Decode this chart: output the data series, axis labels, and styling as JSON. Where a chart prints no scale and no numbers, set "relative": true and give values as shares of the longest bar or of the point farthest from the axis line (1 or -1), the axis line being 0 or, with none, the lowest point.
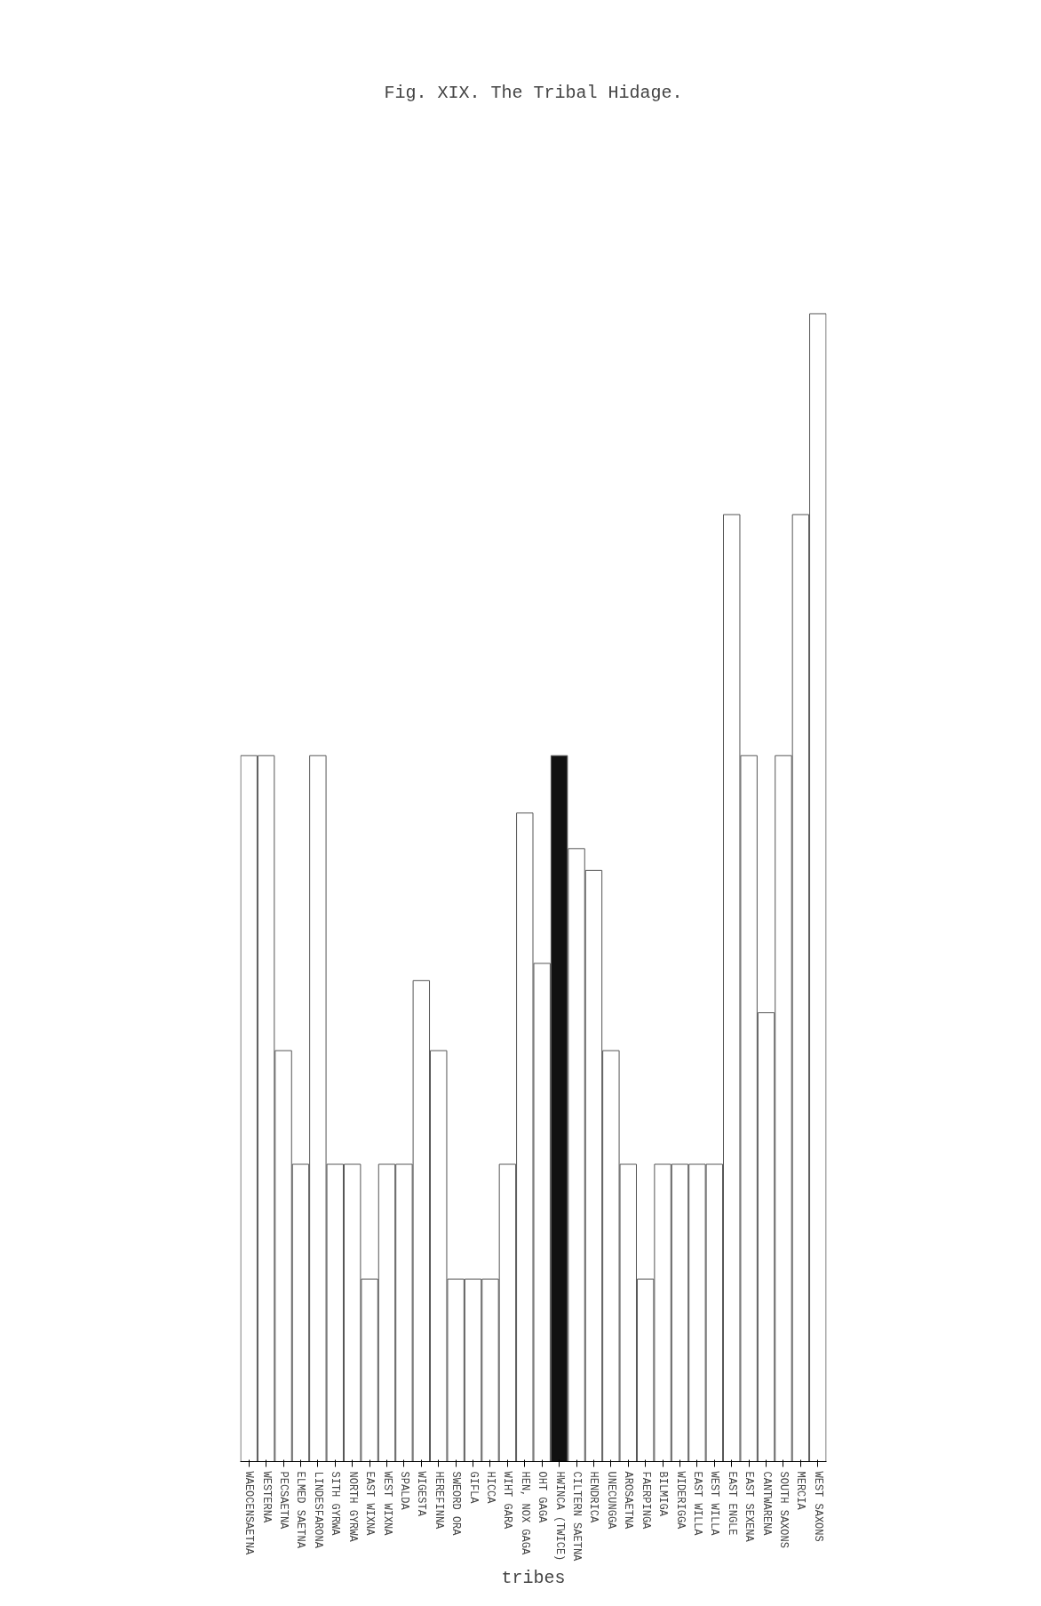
{
  "chart_data": {
    "type": "bar",
    "title": "Fig. XIX. The Tribal Hidage.",
    "xlabel": "tribes",
    "relative": true,
    "categories": [
      "WAEOCENSAETNA",
      "WESTERNA",
      "PECSAETNA",
      "ELMED SAETNA",
      "LINDESFARONA",
      "SITH GYRWA",
      "NORTH GYRWA",
      "EAST WIXNA",
      "WEST WIXNA",
      "SPALDA",
      "WIGESTA",
      "HEREFINNA",
      "SWEORD ORA",
      "GIFLA",
      "HICCA",
      "WIHT GARA",
      "HEN, NOX GAGA",
      "OHT GAGA",
      "HWINCA (TWICE)",
      "CILTERN SAETNA",
      "HENDRICA",
      "UNECUNGGA",
      "AROSAETNA",
      "FAERPINGA",
      "BILMIGA",
      "WIDERIGGA",
      "EAST WILLA",
      "WEST WILLA",
      "EAST ENGLE",
      "EAST SEXENA",
      "CANTWARENA",
      "SOUTH SAXONS",
      "MERCIA",
      "WEST SAXONS"
    ],
    "values": [
      0.615,
      0.615,
      0.358,
      0.259,
      0.615,
      0.259,
      0.259,
      0.159,
      0.259,
      0.259,
      0.419,
      0.358,
      0.159,
      0.159,
      0.159,
      0.259,
      0.565,
      0.434,
      0.615,
      0.534,
      0.515,
      0.358,
      0.259,
      0.159,
      0.259,
      0.259,
      0.259,
      0.259,
      0.825,
      0.615,
      0.391,
      0.615,
      0.825,
      1.0
    ],
    "colors": [
      "#ffffff",
      "#ffffff",
      "#ffffff",
      "#ffffff",
      "#ffffff",
      "#ffffff",
      "#ffffff",
      "#ffffff",
      "#ffffff",
      "#ffffff",
      "#ffffff",
      "#ffffff",
      "#ffffff",
      "#ffffff",
      "#ffffff",
      "#ffffff",
      "#ffffff",
      "#ffffff",
      "#111111",
      "#ffffff",
      "#ffffff",
      "#ffffff",
      "#ffffff",
      "#ffffff",
      "#ffffff",
      "#ffffff",
      "#ffffff",
      "#ffffff",
      "#ffffff",
      "#ffffff",
      "#ffffff",
      "#ffffff",
      "#ffffff",
      "#ffffff"
    ]
  }
}
